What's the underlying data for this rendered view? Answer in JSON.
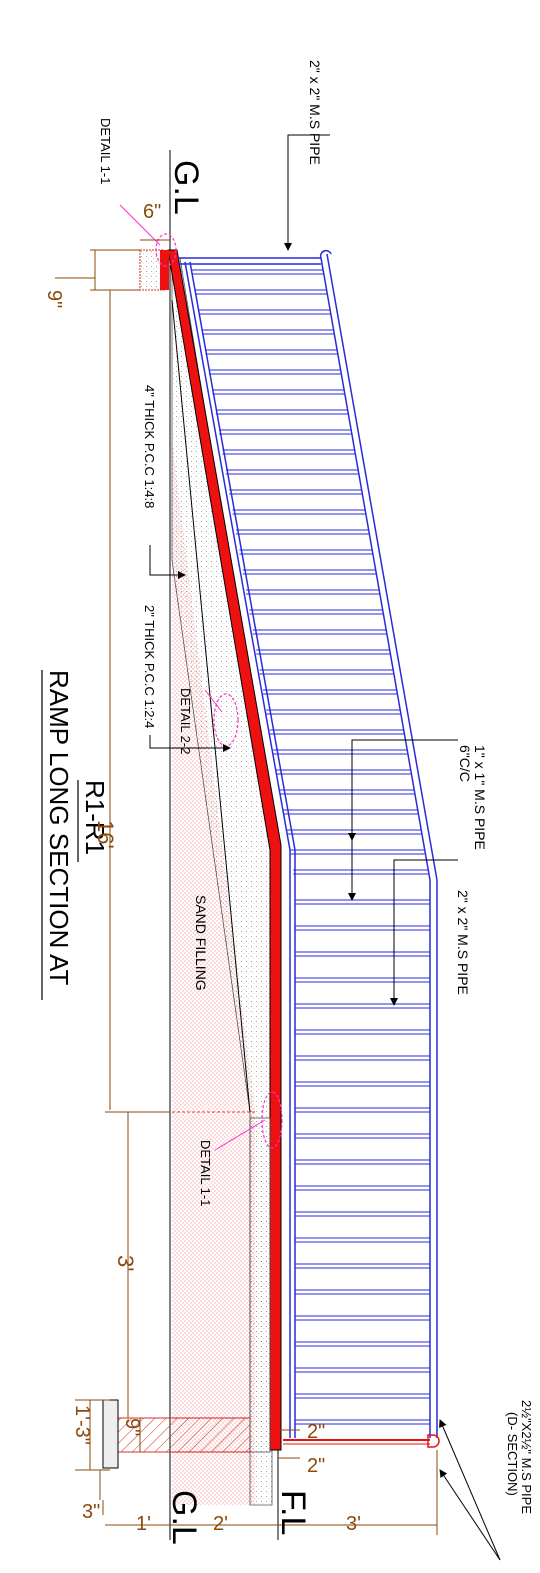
{
  "title": {
    "line1": "RAMP LONG SECTION AT",
    "line2": "R1-R1"
  },
  "levels": {
    "gl_top": "G.L",
    "gl_bottom": "G.L",
    "fl": "F.L"
  },
  "labels": {
    "top_pipe": "2\" x 2\" M.S PIPE",
    "mid_pipe": "2\" x 2\" M.S PIPE",
    "baluster_pipe_line1": "1\" x 1\" M.S PIPE",
    "baluster_pipe_line2": "6\"C/C",
    "d_section_line1": "2½\"X2½\" M.S PIPE",
    "d_section_line2": "(D- SECTION)",
    "detail_1_1_top": "DETAIL 1-1",
    "detail_2_2": "DETAIL 2-2",
    "detail_1_1_bottom": "DETAIL 1-1",
    "pcc_4": "4\" THICK P.C.C 1:4:8",
    "pcc_2": "2\" THICK P.C.C 1:2:4",
    "sand_filling": "SAND FILLING"
  },
  "dimensions": {
    "d_6in": "6\"",
    "d_9in_top": "9\"",
    "d_16ft": "16'",
    "d_3ft_left": "3'",
    "d_1ft3in": "1'-3\"",
    "d_9in_bottom": "9\"",
    "d_3in": "3\"",
    "d_1ft": "1'",
    "d_2ft": "2'",
    "d_3ft_bottom": "3'",
    "d_2in_a": "2\"",
    "d_2in_b": "2\""
  },
  "colors": {
    "rail": "#2a2ad8",
    "slab": "#ee1111",
    "dimension": "#8b4a0c",
    "callout": "#ff33cc",
    "fill_hatch": "#e04040"
  }
}
